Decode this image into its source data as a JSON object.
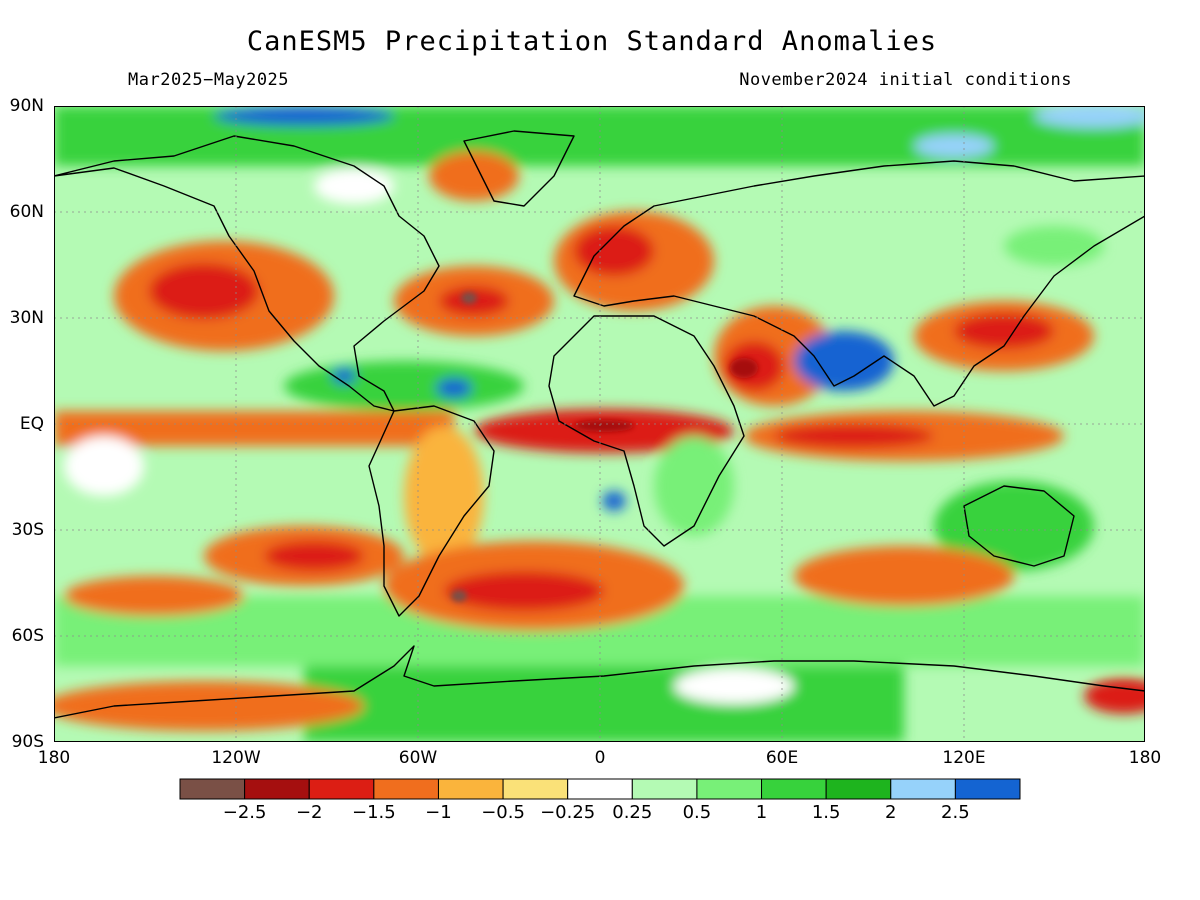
{
  "header": {
    "title": "CanESM5 Precipitation Standard Anomalies",
    "period": "Mar2025−May2025",
    "initial_conditions": "November2024 initial conditions"
  },
  "axes": {
    "lat_labels": [
      "90N",
      "60N",
      "30N",
      "EQ",
      "30S",
      "60S",
      "90S"
    ],
    "lon_labels": [
      "180",
      "120W",
      "60W",
      "0",
      "60E",
      "120E",
      "180"
    ]
  },
  "legend": {
    "colors": [
      "#7a5046",
      "#a50f0f",
      "#dc1e14",
      "#f06e1e",
      "#fab43c",
      "#fae178",
      "#ffffff",
      "#b4fab4",
      "#78f078",
      "#37d23c",
      "#1eb41e",
      "#96d2fa",
      "#1464d2"
    ],
    "labels": [
      "−2.5",
      "−2",
      "−1.5",
      "−1",
      "−0.5",
      "−0.25",
      "0.25",
      "0.5",
      "1",
      "1.5",
      "2",
      "2.5"
    ]
  }
}
